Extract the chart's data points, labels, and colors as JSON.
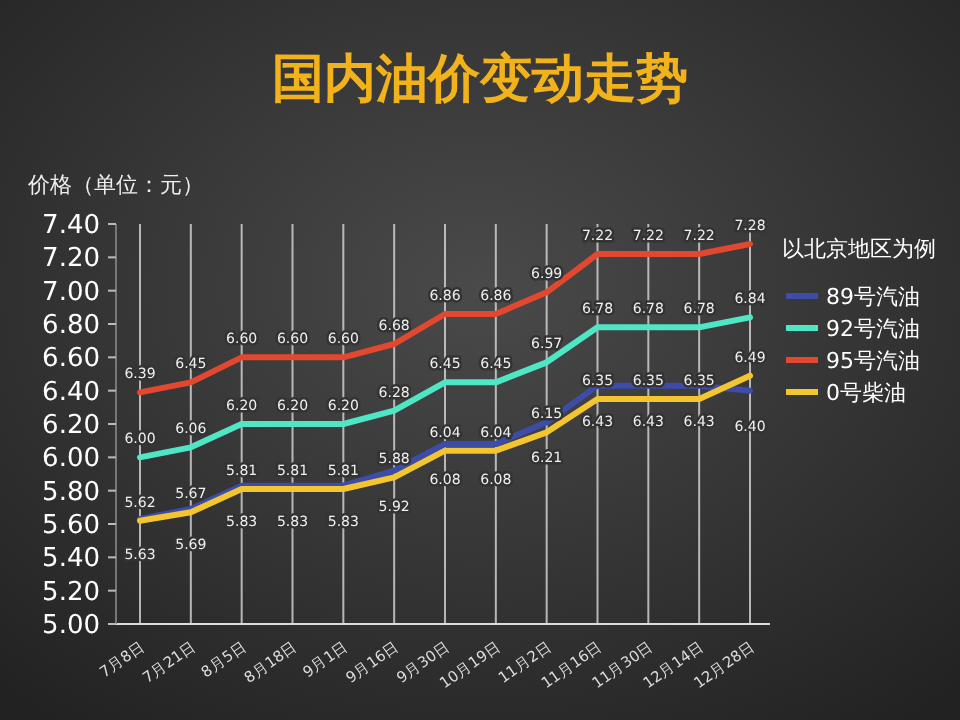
{
  "chart_data": {
    "type": "line",
    "title": "国内油价变动走势",
    "ylabel": "价格（单位：元）",
    "legend_title": "以北京地区为例",
    "categories": [
      "7月8日",
      "7月21日",
      "8月5日",
      "8月18日",
      "9月1日",
      "9月16日",
      "9月30日",
      "10月19日",
      "11月2日",
      "11月16日",
      "11月30日",
      "12月14日",
      "12月28日"
    ],
    "series": [
      {
        "name": "89号汽油",
        "color": "#3c4ca8",
        "values": [
          5.63,
          5.69,
          5.83,
          5.83,
          5.83,
          5.92,
          6.08,
          6.08,
          6.21,
          6.43,
          6.43,
          6.43,
          6.4
        ],
        "value_labels": [
          "5.63",
          "5.69",
          "5.83",
          "5.83",
          "5.83",
          "5.92",
          "6.08",
          "6.08",
          "6.21",
          "6.43",
          "6.43",
          "6.43",
          "6.40"
        ]
      },
      {
        "name": "92号汽油",
        "color": "#4fe6c6",
        "values": [
          6.0,
          6.06,
          6.2,
          6.2,
          6.2,
          6.28,
          6.45,
          6.45,
          6.57,
          6.78,
          6.78,
          6.78,
          6.84
        ],
        "value_labels": [
          "6.00",
          "6.06",
          "6.20",
          "6.20",
          "6.20",
          "6.28",
          "6.45",
          "6.45",
          "6.57",
          "6.78",
          "6.78",
          "6.78",
          "6.84"
        ]
      },
      {
        "name": "95号汽油",
        "color": "#e2472f",
        "values": [
          6.39,
          6.45,
          6.6,
          6.6,
          6.6,
          6.68,
          6.86,
          6.86,
          6.99,
          7.22,
          7.22,
          7.22,
          7.28
        ],
        "value_labels": [
          "6.39",
          "6.45",
          "6.60",
          "6.60",
          "6.60",
          "6.68",
          "6.86",
          "6.86",
          "6.99",
          "7.22",
          "7.22",
          "7.22",
          "7.28"
        ]
      },
      {
        "name": "0号柴油",
        "color": "#f2c531",
        "values": [
          5.62,
          5.67,
          5.81,
          5.81,
          5.81,
          5.88,
          6.04,
          6.04,
          6.15,
          6.35,
          6.35,
          6.35,
          6.49
        ],
        "value_labels": [
          "5.62",
          "5.67",
          "5.81",
          "5.81",
          "5.81",
          "5.88",
          "6.04",
          "6.04",
          "6.15",
          "6.35",
          "6.35",
          "6.35",
          "6.49"
        ]
      }
    ],
    "ylim": [
      5.0,
      7.4
    ],
    "yticks": [
      {
        "value": 5.0,
        "label": "5.00"
      },
      {
        "value": 5.2,
        "label": "5.20"
      },
      {
        "value": 5.4,
        "label": "5.40"
      },
      {
        "value": 5.6,
        "label": "5.60"
      },
      {
        "value": 5.8,
        "label": "5.80"
      },
      {
        "value": 6.0,
        "label": "6.00"
      },
      {
        "value": 6.2,
        "label": "6.20"
      },
      {
        "value": 6.4,
        "label": "6.40"
      },
      {
        "value": 6.6,
        "label": "6.60"
      },
      {
        "value": 6.8,
        "label": "6.80"
      },
      {
        "value": 7.0,
        "label": "7.00"
      },
      {
        "value": 7.2,
        "label": "7.20"
      },
      {
        "value": 7.4,
        "label": "7.40"
      }
    ],
    "grid": "x",
    "legend": "right",
    "marker": "none",
    "line_style": "solid"
  }
}
